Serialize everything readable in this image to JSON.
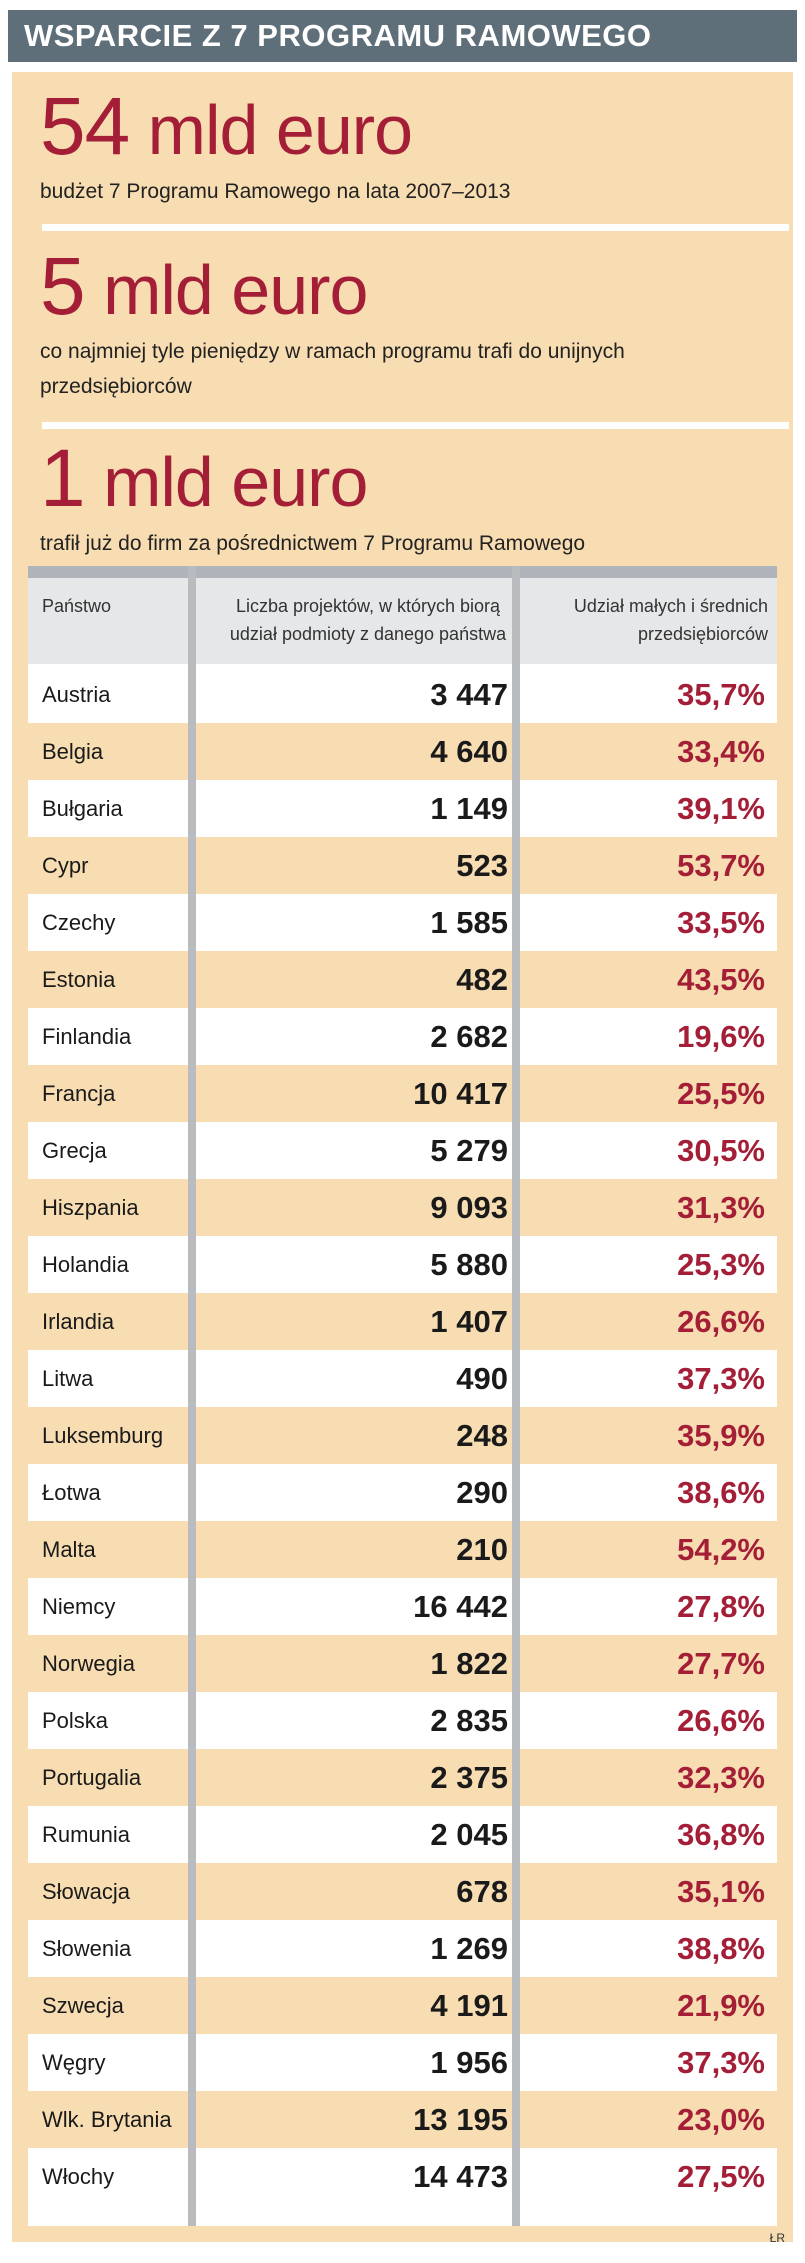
{
  "header": {
    "title": "WSPARCIE Z 7 PROGRAMU RAMOWEGO"
  },
  "stats": [
    {
      "number": "54",
      "unit": "mld euro",
      "description": "budżet 7 Programu Ramowego na lata 2007–2013"
    },
    {
      "number": "5",
      "unit": "mld euro",
      "description": "co najmniej tyle pieniędzy w ramach programu trafi do unijnych przedsiębiorców"
    },
    {
      "number": "1",
      "unit": "mld euro",
      "description": "trafił już do firm za pośrednictwem 7 Programu Ramowego"
    }
  ],
  "table": {
    "headers": {
      "country": "Państwo",
      "projects": "Liczba projektów, w których biorą udział podmioty z danego państwa",
      "sme_share": "Udział małych i średnich przedsiębiorców"
    },
    "rows": [
      {
        "country": "Austria",
        "projects": "3 447",
        "share": "35,7%"
      },
      {
        "country": "Belgia",
        "projects": "4 640",
        "share": "33,4%"
      },
      {
        "country": "Bułgaria",
        "projects": "1 149",
        "share": "39,1%"
      },
      {
        "country": "Cypr",
        "projects": "523",
        "share": "53,7%"
      },
      {
        "country": "Czechy",
        "projects": "1 585",
        "share": "33,5%"
      },
      {
        "country": "Estonia",
        "projects": "482",
        "share": "43,5%"
      },
      {
        "country": "Finlandia",
        "projects": "2 682",
        "share": "19,6%"
      },
      {
        "country": "Francja",
        "projects": "10 417",
        "share": "25,5%"
      },
      {
        "country": "Grecja",
        "projects": "5 279",
        "share": "30,5%"
      },
      {
        "country": "Hiszpania",
        "projects": "9 093",
        "share": "31,3%"
      },
      {
        "country": "Holandia",
        "projects": "5 880",
        "share": "25,3%"
      },
      {
        "country": "Irlandia",
        "projects": "1 407",
        "share": "26,6%"
      },
      {
        "country": "Litwa",
        "projects": "490",
        "share": "37,3%"
      },
      {
        "country": "Luksemburg",
        "projects": "248",
        "share": "35,9%"
      },
      {
        "country": "Łotwa",
        "projects": "290",
        "share": "38,6%"
      },
      {
        "country": "Malta",
        "projects": "210",
        "share": "54,2%"
      },
      {
        "country": "Niemcy",
        "projects": "16 442",
        "share": "27,8%"
      },
      {
        "country": "Norwegia",
        "projects": "1 822",
        "share": "27,7%"
      },
      {
        "country": "Polska",
        "projects": "2 835",
        "share": "26,6%"
      },
      {
        "country": "Portugalia",
        "projects": "2 375",
        "share": "32,3%"
      },
      {
        "country": "Rumunia",
        "projects": "2 045",
        "share": "36,8%"
      },
      {
        "country": "Słowacja",
        "projects": "678",
        "share": "35,1%"
      },
      {
        "country": "Słowenia",
        "projects": "1 269",
        "share": "38,8%"
      },
      {
        "country": "Szwecja",
        "projects": "4 191",
        "share": "21,9%"
      },
      {
        "country": "Węgry",
        "projects": "1 956",
        "share": "37,3%"
      },
      {
        "country": "Wlk. Brytania",
        "projects": "13 195",
        "share": "23,0%"
      },
      {
        "country": "Włochy",
        "projects": "14 473",
        "share": "27,5%"
      }
    ]
  },
  "credit": "ŁR",
  "colors": {
    "accent": "#a31e36",
    "panel": "#f8ddb2",
    "title_bar": "#5e6f79"
  }
}
